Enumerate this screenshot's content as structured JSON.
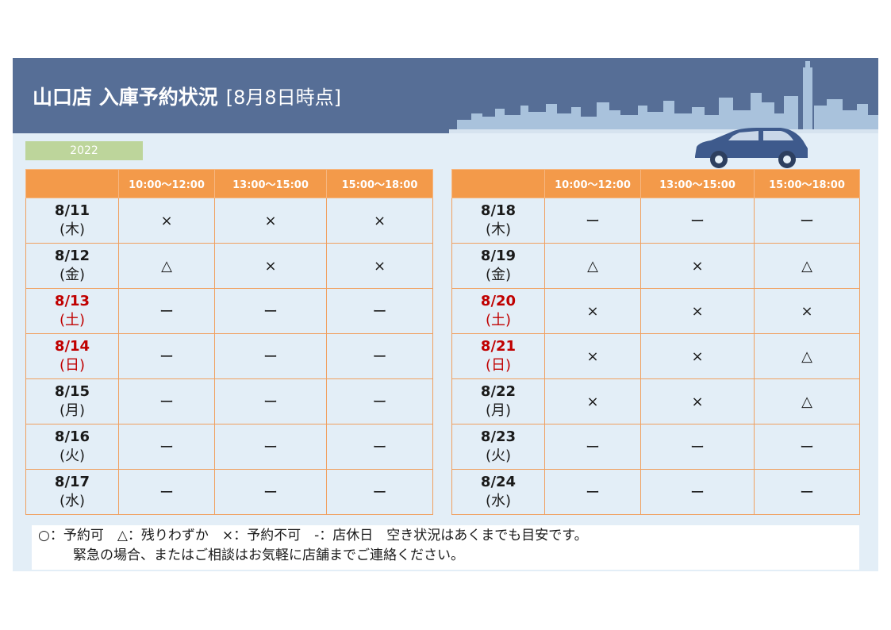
{
  "header": {
    "title": "山口店 入庫予約状況",
    "as_of": "[8月8日時点]",
    "year": "2022"
  },
  "time_slots": [
    "10:00～12:00",
    "13:00～15:00",
    "15:00～18:00"
  ],
  "left_table": [
    {
      "date": "8/11",
      "dow": "(木)",
      "weekend": false,
      "slots": [
        "×",
        "×",
        "×"
      ]
    },
    {
      "date": "8/12",
      "dow": "(金)",
      "weekend": false,
      "slots": [
        "△",
        "×",
        "×"
      ]
    },
    {
      "date": "8/13",
      "dow": "(土)",
      "weekend": true,
      "slots": [
        "ー",
        "ー",
        "ー"
      ]
    },
    {
      "date": "8/14",
      "dow": "(日)",
      "weekend": true,
      "slots": [
        "ー",
        "ー",
        "ー"
      ]
    },
    {
      "date": "8/15",
      "dow": "(月)",
      "weekend": false,
      "slots": [
        "ー",
        "ー",
        "ー"
      ]
    },
    {
      "date": "8/16",
      "dow": "(火)",
      "weekend": false,
      "slots": [
        "ー",
        "ー",
        "ー"
      ]
    },
    {
      "date": "8/17",
      "dow": "(水)",
      "weekend": false,
      "slots": [
        "ー",
        "ー",
        "ー"
      ]
    }
  ],
  "right_table": [
    {
      "date": "8/18",
      "dow": "(木)",
      "weekend": false,
      "slots": [
        "ー",
        "ー",
        "ー"
      ]
    },
    {
      "date": "8/19",
      "dow": "(金)",
      "weekend": false,
      "slots": [
        "△",
        "×",
        "△"
      ]
    },
    {
      "date": "8/20",
      "dow": "(土)",
      "weekend": true,
      "slots": [
        "×",
        "×",
        "×"
      ]
    },
    {
      "date": "8/21",
      "dow": "(日)",
      "weekend": true,
      "slots": [
        "×",
        "×",
        "△"
      ]
    },
    {
      "date": "8/22",
      "dow": "(月)",
      "weekend": false,
      "slots": [
        "×",
        "×",
        "△"
      ]
    },
    {
      "date": "8/23",
      "dow": "(火)",
      "weekend": false,
      "slots": [
        "ー",
        "ー",
        "ー"
      ]
    },
    {
      "date": "8/24",
      "dow": "(水)",
      "weekend": false,
      "slots": [
        "ー",
        "ー",
        "ー"
      ]
    }
  ],
  "legend": {
    "line1": "○：予約可　△：残りわずか　×：予約不可　-：店休日　空き状況はあくまでも目安です。",
    "line2": "緊急の場合、またはご相談はお気軽に店舗までご連絡ください。"
  },
  "colors": {
    "banner": "#566e96",
    "header_row": "#f39a4a",
    "weekend_text": "#c00000",
    "year_badge": "#bdd59b"
  },
  "icons": {
    "skyline": "city-skyline-illustration",
    "car": "car-illustration"
  }
}
